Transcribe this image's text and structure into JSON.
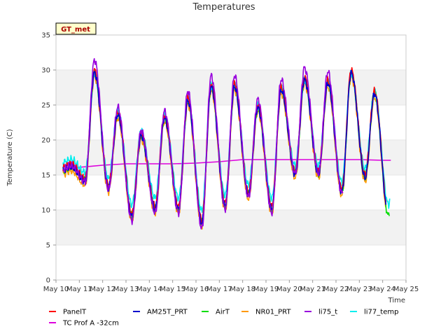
{
  "chart_data": {
    "type": "line",
    "title": "Temperatures",
    "xlabel": "Time",
    "ylabel": "Temperature (C)",
    "station_badge": "GT_met",
    "x_tick_labels": [
      "May 10",
      "May 11",
      "May 12",
      "May 13",
      "May 14",
      "May 15",
      "May 16",
      "May 17",
      "May 18",
      "May 19",
      "May 20",
      "May 21",
      "May 22",
      "May 23",
      "May 24",
      "May 25"
    ],
    "x_ticks": [
      10,
      11,
      12,
      13,
      14,
      15,
      16,
      17,
      18,
      19,
      20,
      21,
      22,
      23,
      24,
      25
    ],
    "xlim": [
      10,
      25
    ],
    "y_ticks": [
      0,
      5,
      10,
      15,
      20,
      25,
      30,
      35
    ],
    "ylim": [
      0,
      35
    ],
    "grid": "horizontal bands",
    "legend_position": "bottom",
    "day_extremes": {
      "days": [
        10,
        11,
        12,
        13,
        14,
        15,
        16,
        17,
        18,
        19,
        20,
        21,
        22,
        23,
        24
      ],
      "morning_min": [
        16,
        14.5,
        13.5,
        9.5,
        10.5,
        10.5,
        8.5,
        11,
        12.5,
        10.5,
        15.5,
        15.5,
        13,
        15,
        9.5
      ],
      "afternoon_max": [
        16.5,
        30,
        24,
        21,
        23.5,
        26,
        28,
        28,
        25,
        27.5,
        29,
        28.5,
        30,
        27,
        26
      ]
    },
    "series": [
      {
        "name": "PanelT",
        "color": "#ff0000",
        "x_start": 10.3,
        "x_end": 24.15,
        "offset": 0.0
      },
      {
        "name": "TC Prof A -32cm",
        "color": "#dd00dd",
        "x_start": 10.3,
        "x_end": 24.35,
        "x": [
          10.3,
          11,
          12,
          13,
          14,
          15,
          16,
          17,
          18,
          19,
          20,
          21,
          22,
          23,
          24,
          24.35
        ],
        "y": [
          15.8,
          16.1,
          16.4,
          16.6,
          16.6,
          16.6,
          16.7,
          16.9,
          17.2,
          17.2,
          17.2,
          17.2,
          17.2,
          17.2,
          17.1,
          17.1
        ]
      },
      {
        "name": "AM25T_PRT",
        "color": "#0000cc",
        "x_start": 10.3,
        "x_end": 24.15,
        "offset": -0.4
      },
      {
        "name": "AirT",
        "color": "#00dd00",
        "x_start": 10.3,
        "x_end": 24.3,
        "offset": -0.3
      },
      {
        "name": "NR01_PRT",
        "color": "#ff9900",
        "x_start": 10.3,
        "x_end": 24.15,
        "offset": -0.9
      },
      {
        "name": "li75_t",
        "color": "#9900dd",
        "x_start": 10.3,
        "x_end": 22.3,
        "offset": 0.0,
        "peak_scale": 1.12
      },
      {
        "name": "li77_temp",
        "color": "#00eeee",
        "x_start": 10.3,
        "x_end": 24.3,
        "offset": 0.6,
        "peak_scale": 0.92
      }
    ]
  }
}
